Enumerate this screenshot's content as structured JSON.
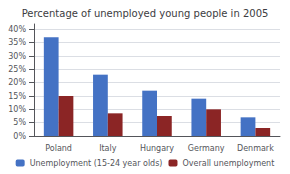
{
  "chart_data": {
    "type": "bar",
    "title": "Percentage of unemployed young people in 2005",
    "categories": [
      "Poland",
      "Italy",
      "Hungary",
      "Germany",
      "Denmark"
    ],
    "series": [
      {
        "name": "Unemployment (15-24 year olds)",
        "color": "#4472C4",
        "values": [
          37,
          23,
          17,
          14,
          7
        ]
      },
      {
        "name": "Overall unemployment",
        "color": "#8B2525",
        "values": [
          15,
          8.5,
          7.5,
          10,
          3
        ]
      }
    ],
    "ylim": [
      0,
      42
    ],
    "yticks": [
      {
        "value": 0,
        "label": "0%"
      },
      {
        "value": 5,
        "label": "5%"
      },
      {
        "value": 10,
        "label": "10%"
      },
      {
        "value": 15,
        "label": "15%"
      },
      {
        "value": 20,
        "label": "20%"
      },
      {
        "value": 25,
        "label": "25%"
      },
      {
        "value": 30,
        "label": "30%"
      },
      {
        "value": 35,
        "label": "35%"
      },
      {
        "value": 40,
        "label": "40%"
      }
    ],
    "grid": true,
    "legend": "bottom"
  }
}
